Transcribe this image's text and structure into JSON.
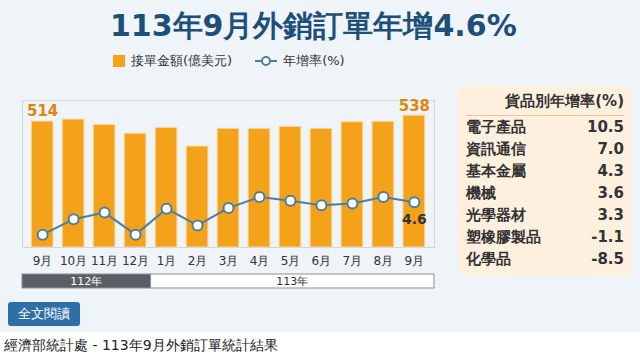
{
  "chart_data": {
    "type": "bar",
    "title": "113年9月外銷訂單年增4.6%",
    "categories": [
      "9月",
      "10月",
      "11月",
      "12月",
      "1月",
      "2月",
      "3月",
      "4月",
      "5月",
      "6月",
      "7月",
      "8月",
      "9月"
    ],
    "groups": [
      {
        "label": "112年",
        "start": 0,
        "end": 3
      },
      {
        "label": "113年",
        "start": 4,
        "end": 12
      }
    ],
    "series": [
      {
        "name": "接單金額(億美元)",
        "type": "bar",
        "color": "#f5a21b",
        "values": [
          514,
          522,
          500,
          464,
          488,
          412,
          484,
          484,
          492,
          484,
          511,
          513,
          538
        ],
        "value_labels": [
          "514",
          null,
          null,
          null,
          null,
          null,
          null,
          null,
          null,
          null,
          null,
          null,
          "538"
        ]
      },
      {
        "name": "年增率(%)",
        "type": "line",
        "axis": "y2",
        "color": "#4a7fa3",
        "marker": "circle",
        "values": [
          -13.0,
          -4.6,
          -1.0,
          -13.0,
          1.1,
          -8.0,
          1.5,
          7.5,
          5.5,
          3.0,
          4.0,
          7.5,
          4.6
        ],
        "value_labels": [
          null,
          null,
          null,
          null,
          null,
          null,
          null,
          null,
          null,
          null,
          null,
          null,
          "4.6"
        ]
      }
    ],
    "ylim": [
      0,
      600
    ],
    "y2lim": [
      -20,
      60
    ],
    "tick_labels": "x",
    "data_labels": true,
    "legend": "top"
  },
  "side_table": {
    "title": "貨品別年增率(%)",
    "rows": [
      [
        "電子產品",
        "10.5"
      ],
      [
        "資訊通信",
        "7.0"
      ],
      [
        "基本金屬",
        "4.3"
      ],
      [
        "機械",
        "3.6"
      ],
      [
        "光學器材",
        "3.3"
      ],
      [
        "塑橡膠製品",
        "-1.1"
      ],
      [
        "化學品",
        "-8.5"
      ]
    ]
  },
  "footer": {
    "button": "全文閱讀",
    "caption": "經濟部統計處 - 113年9月外銷訂單統計結果"
  }
}
